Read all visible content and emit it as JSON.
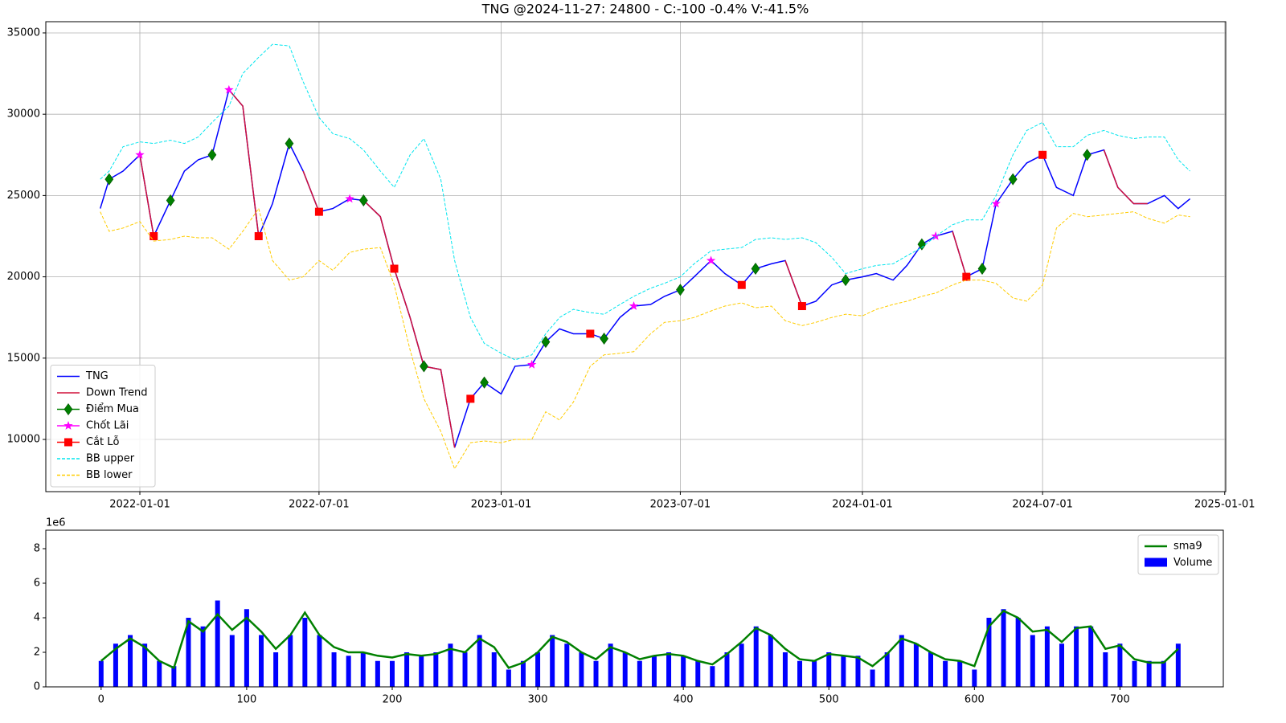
{
  "chart_data": [
    {
      "type": "line",
      "title": "TNG @2024-11-27: 24800 - C:-100 -0.4% V:-41.5%",
      "x": [
        "2021-11-22",
        "2021-12-01",
        "2021-12-15",
        "2022-01-01",
        "2022-01-15",
        "2022-02-01",
        "2022-02-15",
        "2022-03-01",
        "2022-03-15",
        "2022-04-01",
        "2022-04-15",
        "2022-05-01",
        "2022-05-15",
        "2022-06-01",
        "2022-06-15",
        "2022-07-01",
        "2022-07-15",
        "2022-08-01",
        "2022-08-15",
        "2022-09-01",
        "2022-09-15",
        "2022-10-01",
        "2022-10-15",
        "2022-11-01",
        "2022-11-15",
        "2022-12-01",
        "2022-12-15",
        "2023-01-01",
        "2023-01-15",
        "2023-02-01",
        "2023-02-15",
        "2023-03-01",
        "2023-03-15",
        "2023-04-01",
        "2023-04-15",
        "2023-05-01",
        "2023-05-15",
        "2023-06-01",
        "2023-06-15",
        "2023-07-01",
        "2023-07-15",
        "2023-08-01",
        "2023-08-15",
        "2023-09-01",
        "2023-09-15",
        "2023-10-01",
        "2023-10-15",
        "2023-11-01",
        "2023-11-15",
        "2023-12-01",
        "2023-12-15",
        "2024-01-01",
        "2024-01-15",
        "2024-02-01",
        "2024-02-15",
        "2024-03-01",
        "2024-03-15",
        "2024-04-01",
        "2024-04-15",
        "2024-05-01",
        "2024-05-15",
        "2024-06-01",
        "2024-06-15",
        "2024-07-01",
        "2024-07-15",
        "2024-08-01",
        "2024-08-15",
        "2024-09-01",
        "2024-09-15",
        "2024-10-01",
        "2024-10-15",
        "2024-11-01",
        "2024-11-15",
        "2024-11-27"
      ],
      "series": [
        {
          "name": "TNG",
          "color": "#0000ff",
          "style": "line",
          "values": [
            24200,
            26000,
            26500,
            27500,
            22500,
            24700,
            26500,
            27200,
            27500,
            31500,
            30500,
            22500,
            24500,
            28200,
            26500,
            24000,
            24200,
            24800,
            24700,
            23700,
            20500,
            17500,
            14500,
            14300,
            9500,
            12500,
            13500,
            12800,
            14500,
            14600,
            16000,
            16800,
            16500,
            16500,
            16200,
            17500,
            18200,
            18300,
            18800,
            19200,
            20000,
            21000,
            20200,
            19500,
            20500,
            20800,
            21000,
            18200,
            18500,
            19500,
            19800,
            20000,
            20200,
            19800,
            20700,
            22000,
            22500,
            22800,
            20000,
            20500,
            24500,
            26000,
            27000,
            27500,
            25500,
            25000,
            27500,
            27800,
            25500,
            24500,
            24500,
            25000,
            24200,
            24800
          ]
        },
        {
          "name": "Down Trend",
          "color": "#d0103a",
          "style": "line",
          "values": [
            null,
            null,
            null,
            27500,
            22500,
            null,
            null,
            null,
            null,
            31500,
            30500,
            22500,
            null,
            null,
            26500,
            24000,
            null,
            null,
            24700,
            23700,
            20500,
            17500,
            14500,
            14300,
            9500,
            null,
            null,
            12800,
            null,
            null,
            null,
            null,
            null,
            null,
            null,
            null,
            null,
            null,
            null,
            null,
            null,
            null,
            null,
            null,
            null,
            null,
            21000,
            18200,
            null,
            null,
            null,
            null,
            null,
            null,
            null,
            null,
            null,
            22800,
            20000,
            null,
            null,
            null,
            null,
            null,
            null,
            null,
            null,
            27800,
            25500,
            24500,
            24500,
            null,
            24200,
            null
          ]
        },
        {
          "name": "Điểm Mua",
          "color": "#008000",
          "style": "marker",
          "marker": "diamond",
          "x": [
            "2021-12-01",
            "2022-02-01",
            "2022-03-15",
            "2022-06-01",
            "2022-08-15",
            "2022-10-15",
            "2022-12-15",
            "2023-02-15",
            "2023-04-15",
            "2023-07-01",
            "2023-09-15",
            "2023-12-15",
            "2024-03-01",
            "2024-05-01",
            "2024-06-01",
            "2024-08-15"
          ],
          "values": [
            26000,
            24700,
            27500,
            28200,
            24700,
            14500,
            13500,
            16000,
            16200,
            19200,
            20500,
            19800,
            22000,
            20500,
            26000,
            27500
          ]
        },
        {
          "name": "Chốt Lãi",
          "color": "#ff00ff",
          "style": "marker",
          "marker": "star",
          "x": [
            "2022-01-01",
            "2022-04-01",
            "2022-08-01",
            "2023-02-01",
            "2023-05-15",
            "2023-08-01",
            "2024-03-15",
            "2024-05-15"
          ],
          "values": [
            27500,
            31500,
            24800,
            14600,
            18200,
            21000,
            22500,
            24500
          ]
        },
        {
          "name": "Cắt Lỗ",
          "color": "#ff0000",
          "style": "marker",
          "marker": "square",
          "x": [
            "2022-01-15",
            "2022-05-01",
            "2022-07-01",
            "2022-09-15",
            "2022-12-01",
            "2023-04-01",
            "2023-09-01",
            "2023-11-01",
            "2024-04-15",
            "2024-07-01"
          ],
          "values": [
            22500,
            22500,
            24000,
            20500,
            12500,
            16500,
            19500,
            18200,
            20000,
            27500
          ]
        },
        {
          "name": "BB upper",
          "color": "#00e5ee",
          "style": "dashed",
          "values": [
            26000,
            26500,
            28000,
            28300,
            28200,
            28400,
            28200,
            28600,
            29500,
            30500,
            32500,
            33500,
            34300,
            34200,
            32000,
            29800,
            28800,
            28500,
            27800,
            26500,
            25500,
            27500,
            28500,
            26000,
            21000,
            17500,
            15900,
            15300,
            14900,
            15200,
            16500,
            17500,
            18000,
            17800,
            17700,
            18300,
            18800,
            19300,
            19600,
            20000,
            20800,
            21600,
            21700,
            21800,
            22300,
            22400,
            22300,
            22400,
            22100,
            21200,
            20200,
            20500,
            20700,
            20800,
            21300,
            21800,
            22500,
            23200,
            23500,
            23500,
            25000,
            27500,
            29000,
            29500,
            28000,
            28000,
            28700,
            29000,
            28700,
            28500,
            28600,
            28600,
            27200,
            26500
          ]
        },
        {
          "name": "BB lower",
          "color": "#ffcc00",
          "style": "dashed",
          "values": [
            24000,
            22800,
            23000,
            23400,
            22200,
            22300,
            22500,
            22400,
            22400,
            21700,
            22800,
            24200,
            21000,
            19800,
            20000,
            21000,
            20400,
            21500,
            21700,
            21800,
            19500,
            15500,
            12500,
            10500,
            8200,
            9800,
            9900,
            9800,
            10000,
            10000,
            11700,
            11200,
            12300,
            14500,
            15200,
            15300,
            15400,
            16500,
            17200,
            17300,
            17500,
            17900,
            18200,
            18400,
            18100,
            18200,
            17300,
            17000,
            17200,
            17500,
            17700,
            17600,
            18000,
            18300,
            18500,
            18800,
            19000,
            19500,
            19800,
            19800,
            19600,
            18700,
            18500,
            19500,
            23000,
            23900,
            23700,
            23800,
            23900,
            24000,
            23600,
            23300,
            23800,
            23700
          ]
        }
      ],
      "xlim": [
        "2021-09-28",
        "2025-01-02"
      ],
      "xticks": [
        "2022-01-01",
        "2022-07-01",
        "2023-01-01",
        "2023-07-01",
        "2024-01-01",
        "2024-07-01",
        "2025-01-01"
      ],
      "ylim": [
        6790,
        35690
      ],
      "yticks": [
        10000,
        15000,
        20000,
        25000,
        30000,
        35000
      ],
      "grid": true,
      "legend": "lower left"
    },
    {
      "type": "bar",
      "offset_label": "1e6",
      "x": [
        0,
        10,
        20,
        30,
        40,
        50,
        60,
        70,
        80,
        90,
        100,
        110,
        120,
        130,
        140,
        150,
        160,
        170,
        180,
        190,
        200,
        210,
        220,
        230,
        240,
        250,
        260,
        270,
        280,
        290,
        300,
        310,
        320,
        330,
        340,
        350,
        360,
        370,
        380,
        390,
        400,
        410,
        420,
        430,
        440,
        450,
        460,
        470,
        480,
        490,
        500,
        510,
        520,
        530,
        540,
        550,
        560,
        570,
        580,
        590,
        600,
        610,
        620,
        630,
        640,
        650,
        660,
        670,
        680,
        690,
        700,
        710,
        720,
        730,
        740
      ],
      "series": [
        {
          "name": "sma9",
          "color": "#008000",
          "style": "line",
          "values": [
            1.5,
            2.2,
            2.8,
            2.3,
            1.5,
            1.1,
            3.8,
            3.2,
            4.2,
            3.3,
            4.0,
            3.2,
            2.2,
            3.0,
            4.3,
            3.0,
            2.3,
            2.0,
            2.0,
            1.8,
            1.7,
            1.9,
            1.8,
            1.9,
            2.2,
            2.0,
            2.8,
            2.3,
            1.1,
            1.4,
            2.0,
            2.9,
            2.6,
            2.0,
            1.6,
            2.3,
            2.0,
            1.6,
            1.8,
            1.9,
            1.8,
            1.5,
            1.3,
            1.9,
            2.6,
            3.4,
            3.0,
            2.2,
            1.6,
            1.5,
            1.9,
            1.8,
            1.7,
            1.2,
            1.9,
            2.8,
            2.5,
            2.0,
            1.6,
            1.5,
            1.2,
            3.5,
            4.4,
            4.0,
            3.2,
            3.3,
            2.6,
            3.4,
            3.5,
            2.2,
            2.4,
            1.6,
            1.4,
            1.4,
            2.2
          ]
        },
        {
          "name": "Volume",
          "color": "#0000ff",
          "style": "bar",
          "values": [
            1.5,
            2.5,
            3,
            2.5,
            1.5,
            1.2,
            4,
            3.5,
            5,
            3,
            4.5,
            3,
            2,
            3,
            4,
            3,
            2,
            1.8,
            2,
            1.5,
            1.5,
            2,
            1.8,
            2,
            2.5,
            2,
            3,
            2,
            1,
            1.5,
            2,
            3,
            2.5,
            2,
            1.5,
            2.5,
            2,
            1.5,
            1.8,
            2,
            1.8,
            1.5,
            1.2,
            2,
            2.5,
            3.5,
            3,
            2,
            1.5,
            1.5,
            2,
            1.8,
            1.8,
            1,
            2,
            3,
            2.5,
            2,
            1.5,
            1.5,
            1,
            4,
            4.5,
            4,
            3,
            3.5,
            2.5,
            3.5,
            3.5,
            2,
            2.5,
            1.5,
            1.5,
            1.5,
            2.5
          ]
        }
      ],
      "xlim": [
        -38,
        771
      ],
      "xticks": [
        0,
        100,
        200,
        300,
        400,
        500,
        600,
        700
      ],
      "ylim": [
        0,
        9.07
      ],
      "yticks": [
        0,
        2,
        4,
        6,
        8
      ],
      "legend": "upper right"
    }
  ]
}
